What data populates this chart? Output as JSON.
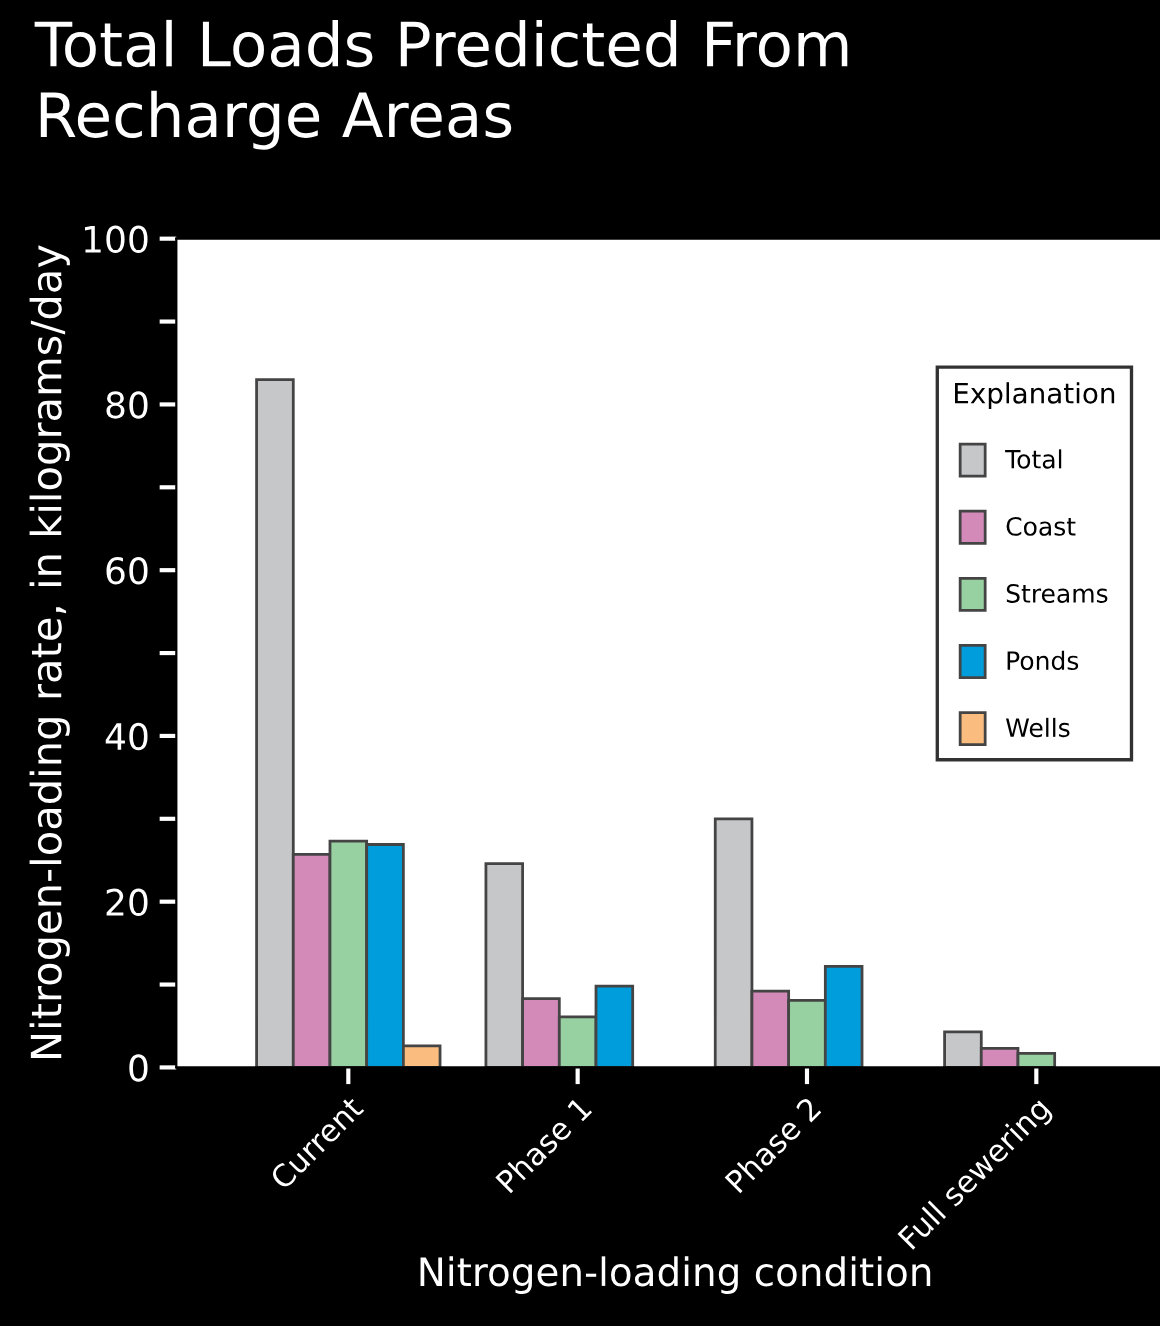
{
  "chart_data": {
    "type": "bar",
    "title": "Total Loads Predicted From\nRecharge Areas",
    "xlabel": "Nitrogen-loading condition",
    "ylabel": "Nitrogen-loading rate, in kilograms/day",
    "categories": [
      "Current",
      "Phase 1",
      "Phase 2",
      "Full sewering"
    ],
    "series": [
      {
        "name": "Total",
        "color": "#c6c7c9",
        "values": [
          83,
          24.6,
          30,
          4.3
        ]
      },
      {
        "name": "Coast",
        "color": "#d38ab9",
        "values": [
          25.7,
          8.3,
          9.2,
          2.3
        ]
      },
      {
        "name": "Streams",
        "color": "#98d1a1",
        "values": [
          27.3,
          6.1,
          8.1,
          1.7
        ]
      },
      {
        "name": "Ponds",
        "color": "#009ddc",
        "values": [
          26.9,
          9.8,
          12.2,
          null
        ]
      },
      {
        "name": "Wells",
        "color": "#fbbd7f",
        "values": [
          2.6,
          null,
          null,
          null
        ]
      }
    ],
    "legend_title": "Explanation",
    "legend": "top right",
    "ylim": [
      0,
      100
    ],
    "yticks": [
      0,
      {
        "value": 10,
        "label": null
      },
      20,
      {
        "value": 30,
        "label": null
      },
      40,
      {
        "value": 50,
        "label": null
      },
      60,
      {
        "value": 70,
        "label": null
      },
      80,
      {
        "value": 90,
        "label": null
      },
      100
    ],
    "grid": false
  }
}
